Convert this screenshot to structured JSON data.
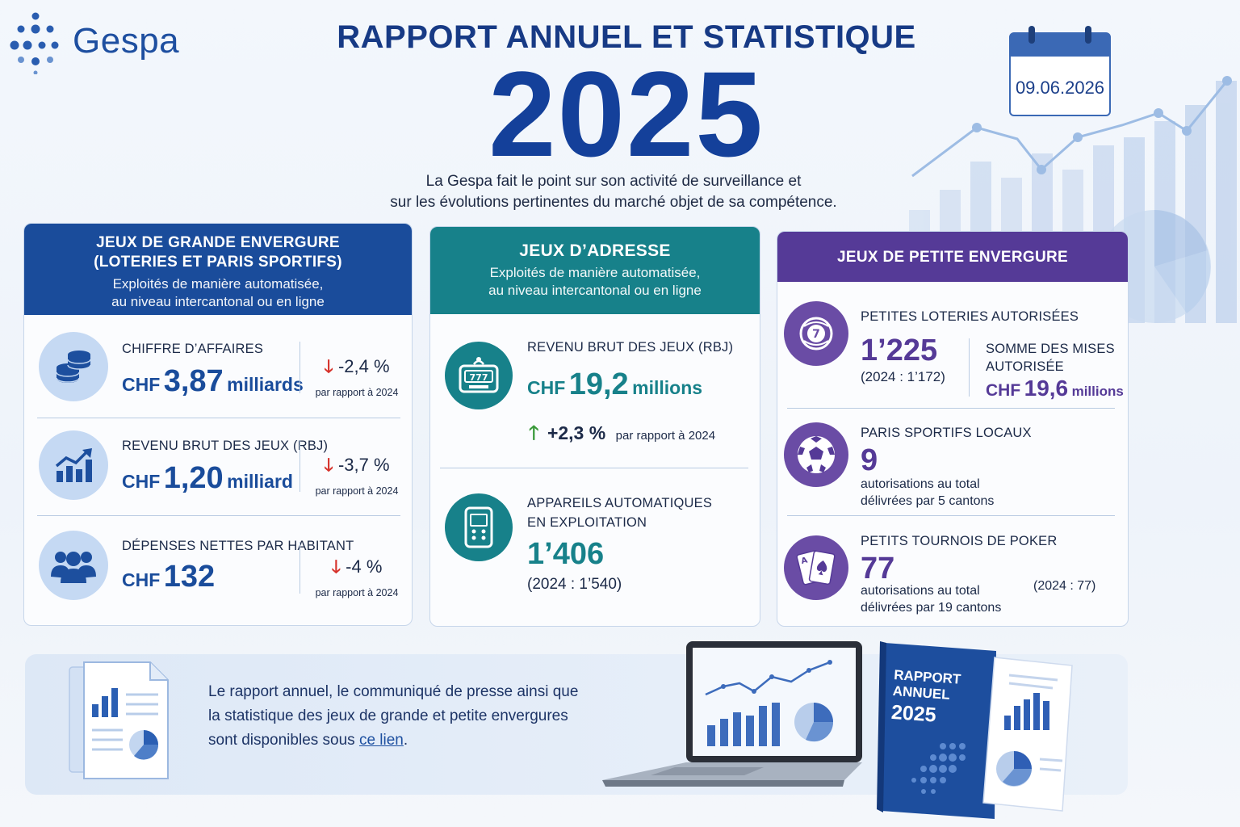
{
  "brand": {
    "name": "Gespa"
  },
  "header": {
    "title": "RAPPORT ANNUEL ET STATISTIQUE",
    "year": "2025",
    "date": "09.06.2026",
    "intro_line1": "La Gespa fait le point sur son activité de surveillance et",
    "intro_line2": "sur les évolutions pertinentes du marché objet de sa compétence."
  },
  "colors": {
    "blue": "#1a4c9b",
    "teal": "#17818a",
    "purple": "#553a97",
    "down": "#d6322b",
    "up": "#3a9a3a"
  },
  "card_large": {
    "title_line1": "JEUX DE GRANDE ENVERGURE",
    "title_line2": "(LOTERIES ET PARIS SPORTIFS)",
    "subtitle_line1": "Exploités de manière automatisée,",
    "subtitle_line2": "au niveau intercantonal ou en ligne",
    "stats": [
      {
        "icon": "coins-icon",
        "label": "CHIFFRE D’AFFAIRES",
        "prefix": "CHF",
        "value": "3,87",
        "unit": "milliards",
        "trend": "-2,4 %",
        "trend_dir": "down",
        "ref": "par rapport à 2024"
      },
      {
        "icon": "growth-chart-icon",
        "label": "REVENU BRUT DES JEUX (RBJ)",
        "prefix": "CHF",
        "value": "1,20",
        "unit": "milliard",
        "trend": "-3,7 %",
        "trend_dir": "down",
        "ref": "par rapport à 2024"
      },
      {
        "icon": "people-icon",
        "label": "DÉPENSES NETTES PAR HABITANT",
        "prefix": "CHF",
        "value": "132",
        "unit": "",
        "trend": "-4 %",
        "trend_dir": "down",
        "ref": "par rapport à 2024"
      }
    ]
  },
  "card_skill": {
    "title": "JEUX D’ADRESSE",
    "subtitle_line1": "Exploités de manière automatisée,",
    "subtitle_line2": "au niveau intercantonal ou en ligne",
    "rbj": {
      "icon": "slot-machine-icon",
      "label": "REVENU BRUT DES JEUX (RBJ)",
      "prefix": "CHF",
      "value": "19,2",
      "unit": "millions",
      "trend": "+2,3 %",
      "trend_dir": "up",
      "ref": "par rapport à 2024"
    },
    "machines": {
      "icon": "gaming-device-icon",
      "label_line1": "APPAREILS AUTOMATIQUES",
      "label_line2": "EN EXPLOITATION",
      "value": "1’406",
      "prev": "(2024 : 1’540)"
    }
  },
  "card_small": {
    "title": "JEUX DE PETITE ENVERGURE",
    "lotteries": {
      "icon": "lottery-ball-icon",
      "label": "PETITES LOTERIES AUTORISÉES",
      "value": "1’225",
      "prev": "(2024 : 1’172)",
      "stakes_label_line1": "SOMME DES MISES",
      "stakes_label_line2": "AUTORISÉE",
      "stakes_prefix": "CHF",
      "stakes_value": "19,6",
      "stakes_unit": "millions"
    },
    "sports": {
      "icon": "football-icon",
      "label": "PARIS SPORTIFS LOCAUX",
      "value": "9",
      "note_line1": "autorisations au total",
      "note_line2": "délivrées par 5 cantons"
    },
    "poker": {
      "icon": "playing-cards-icon",
      "label": "PETITS TOURNOIS DE POKER",
      "value": "77",
      "note_line1": "autorisations au total",
      "note_line2": "délivrées par 19 cantons",
      "prev": "(2024 : 77)"
    }
  },
  "footer": {
    "text_line1": "Le rapport annuel, le communiqué de presse ainsi que",
    "text_line2": "la statistique des jeux de grande et petite envergures",
    "text_line3_prefix": "sont disponibles sous ",
    "link_label": "ce lien",
    "text_line3_suffix": ".",
    "book_line1": "RAPPORT",
    "book_line2": "ANNUEL",
    "book_year": "2025"
  }
}
